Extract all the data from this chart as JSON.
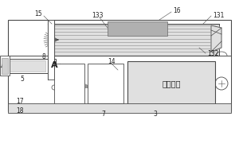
{
  "bg_color": "#ffffff",
  "line_color": "#4a4a4a",
  "gray_fill": "#b0b0b0",
  "light_gray": "#d0d0d0",
  "lighter_gray": "#e0e0e0",
  "label_color": "#222222",
  "title": "",
  "labels": {
    "A_left": "A",
    "A_right": "A",
    "n3": "3",
    "n5": "5",
    "n7": "7",
    "n8": "8",
    "n14": "14",
    "n15": "15",
    "n16": "16",
    "n17": "17",
    "n18": "18",
    "n131": "131",
    "n132": "132",
    "n133": "133",
    "battery_text": "充电电池"
  }
}
